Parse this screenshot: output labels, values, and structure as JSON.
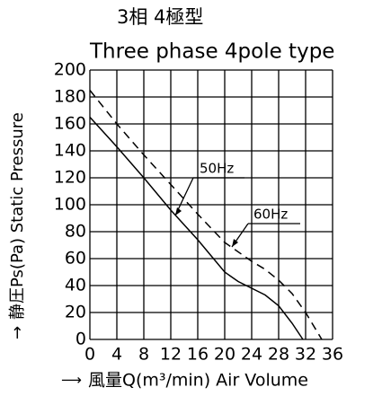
{
  "chart_data": {
    "type": "line",
    "title": "3相 4極型",
    "subtitle": "Three phase 4pole type",
    "y_label": "静圧Ps(Pa) Static Pressure",
    "x_label": "風量Q(m³/min) Air Volume",
    "series": [
      {
        "name": "50Hz",
        "color": "#000000",
        "dash": false,
        "x": [
          0,
          4,
          8,
          12,
          16,
          18,
          20,
          22,
          24,
          26,
          28,
          30,
          31.6
        ],
        "values": [
          165,
          143,
          120,
          96,
          74,
          62,
          50,
          43,
          38,
          33,
          25,
          12,
          0
        ]
      },
      {
        "name": "60Hz",
        "color": "#000000",
        "dash": true,
        "x": [
          0,
          4,
          8,
          12,
          16,
          20,
          24,
          26,
          28,
          30,
          32,
          34.4
        ],
        "values": [
          185,
          160,
          137,
          115,
          93,
          72,
          58,
          52,
          44,
          34,
          20,
          0
        ]
      }
    ],
    "xlim": [
      0,
      36
    ],
    "xticks": [
      0,
      4,
      8,
      12,
      16,
      20,
      24,
      28,
      32,
      36
    ],
    "ylim": [
      0,
      200
    ],
    "yticks": [
      0,
      20,
      40,
      60,
      80,
      100,
      120,
      140,
      160,
      180,
      200
    ],
    "grid": true
  }
}
